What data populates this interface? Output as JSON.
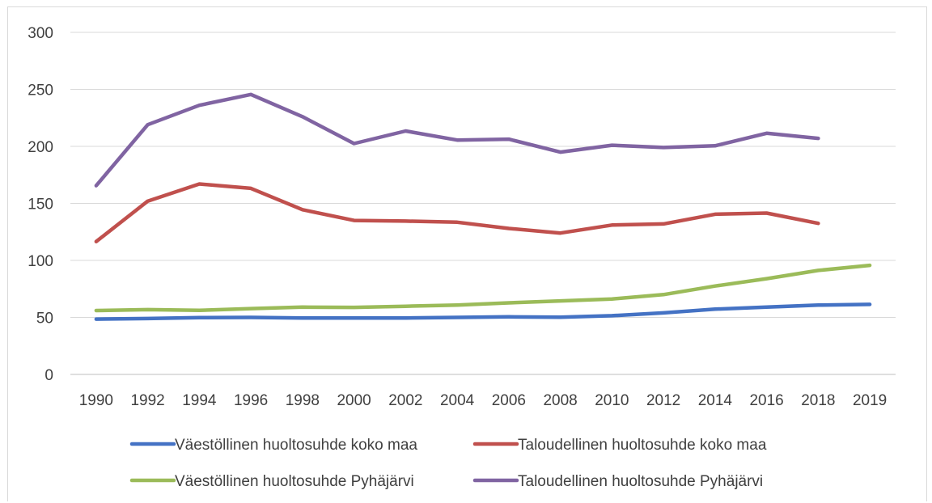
{
  "chart_data": {
    "type": "line",
    "title": "",
    "xlabel": "",
    "ylabel": "",
    "ylim": [
      0,
      300
    ],
    "yticks": [
      0,
      50,
      100,
      150,
      200,
      250,
      300
    ],
    "grid": true,
    "legend_position": "bottom",
    "categories": [
      "1990",
      "1992",
      "1994",
      "1996",
      "1998",
      "2000",
      "2002",
      "2004",
      "2006",
      "2008",
      "2010",
      "2012",
      "2014",
      "2016",
      "2018",
      "2019"
    ],
    "series": [
      {
        "name": "Väestöllinen huoltosuhde koko maa",
        "color": "#4472c4",
        "values": [
          48.5,
          49,
          49.8,
          50,
          49.5,
          49.4,
          49.5,
          50,
          50.5,
          50.2,
          51.5,
          54,
          57.2,
          59,
          60.8,
          61.4
        ]
      },
      {
        "name": "Taloudellinen huoltosuhde koko maa",
        "color": "#c0504d",
        "values": [
          116.5,
          152,
          167,
          163.2,
          144.5,
          135,
          134.5,
          133.5,
          128,
          124,
          131,
          132,
          140.5,
          141.5,
          132.5,
          null
        ]
      },
      {
        "name": "Väestöllinen huoltosuhde Pyhäjärvi",
        "color": "#9bbb59",
        "values": [
          56,
          56.8,
          56.2,
          57.7,
          59,
          58.8,
          59.8,
          60.8,
          62.8,
          64.5,
          66.2,
          70,
          77.5,
          84,
          91.2,
          95.7
        ]
      },
      {
        "name": "Taloudellinen huoltosuhde Pyhäjärvi",
        "color": "#8064a2",
        "values": [
          165.5,
          219,
          236,
          245.5,
          226,
          202.5,
          213.5,
          205.5,
          206.3,
          195,
          201,
          199,
          200.5,
          211.5,
          207,
          null
        ]
      }
    ]
  }
}
